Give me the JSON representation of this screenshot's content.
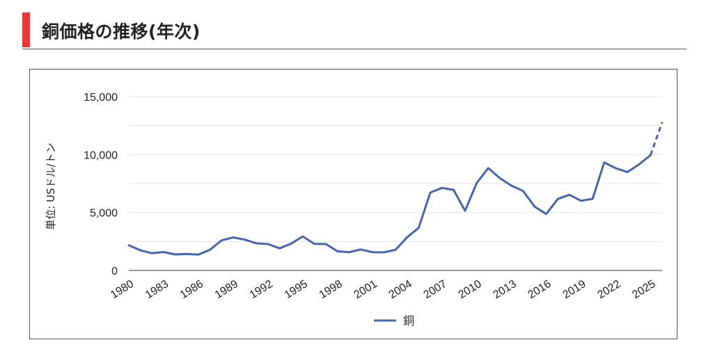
{
  "header": {
    "title": "銅価格の推移(年次)",
    "accent_color": "#e53935"
  },
  "chart_data": {
    "type": "line",
    "title": "",
    "xlabel": "",
    "ylabel": "単位: USドル/トン",
    "ylim": [
      0,
      15000
    ],
    "yticks": [
      "0",
      "5,000",
      "10,000",
      "15,000"
    ],
    "grid": true,
    "legend_position": "bottom",
    "x_tick_labels": [
      "1980",
      "1983",
      "1986",
      "1989",
      "1992",
      "1995",
      "1998",
      "2001",
      "2004",
      "2007",
      "2010",
      "2013",
      "2016",
      "2019",
      "2022",
      "2025"
    ],
    "series": [
      {
        "name": "銅",
        "color": "#4466b0",
        "x": [
          1980,
          1981,
          1982,
          1983,
          1984,
          1985,
          1986,
          1987,
          1988,
          1989,
          1990,
          1991,
          1992,
          1993,
          1994,
          1995,
          1996,
          1997,
          1998,
          1999,
          2000,
          2001,
          2002,
          2003,
          2004,
          2005,
          2006,
          2007,
          2008,
          2009,
          2010,
          2011,
          2012,
          2013,
          2014,
          2015,
          2016,
          2017,
          2018,
          2019,
          2020,
          2021,
          2022,
          2023,
          2024,
          2025
        ],
        "values": [
          2180,
          1740,
          1480,
          1590,
          1380,
          1420,
          1370,
          1780,
          2600,
          2850,
          2660,
          2340,
          2280,
          1910,
          2310,
          2940,
          2290,
          2280,
          1650,
          1570,
          1810,
          1580,
          1560,
          1780,
          2860,
          3680,
          6720,
          7120,
          6960,
          5150,
          7540,
          8830,
          7960,
          7320,
          6860,
          5510,
          4870,
          6170,
          6530,
          6010,
          6180,
          9320,
          8820,
          8490,
          9150,
          9950
        ],
        "projection": {
          "style": "dashed",
          "x": [
            2025,
            2026
          ],
          "values": [
            9950,
            12800
          ]
        }
      }
    ]
  }
}
